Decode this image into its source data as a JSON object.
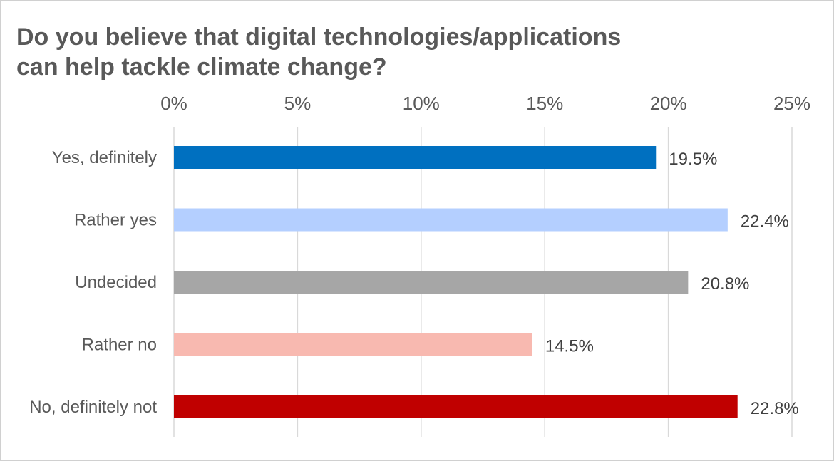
{
  "chart_data": {
    "type": "bar",
    "orientation": "horizontal",
    "title_lines": [
      "Do you believe that digital technologies/applications",
      "can help tackle climate change?"
    ],
    "categories": [
      "Yes, definitely",
      "Rather yes",
      "Undecided",
      "Rather no",
      "No, definitely not"
    ],
    "values": [
      19.5,
      22.4,
      20.8,
      14.5,
      22.8
    ],
    "value_labels": [
      "19.5%",
      "22.4%",
      "20.8%",
      "14.5%",
      "22.8%"
    ],
    "colors": [
      "#0070c0",
      "#b4cfff",
      "#a6a6a6",
      "#f8b9b0",
      "#c00000"
    ],
    "xlim": [
      0,
      25
    ],
    "xticks": [
      0,
      5,
      10,
      15,
      20,
      25
    ],
    "xtick_labels": [
      "0%",
      "5%",
      "10%",
      "15%",
      "20%",
      "25%"
    ],
    "axis_position": "top",
    "grid": true,
    "legend": "none"
  }
}
